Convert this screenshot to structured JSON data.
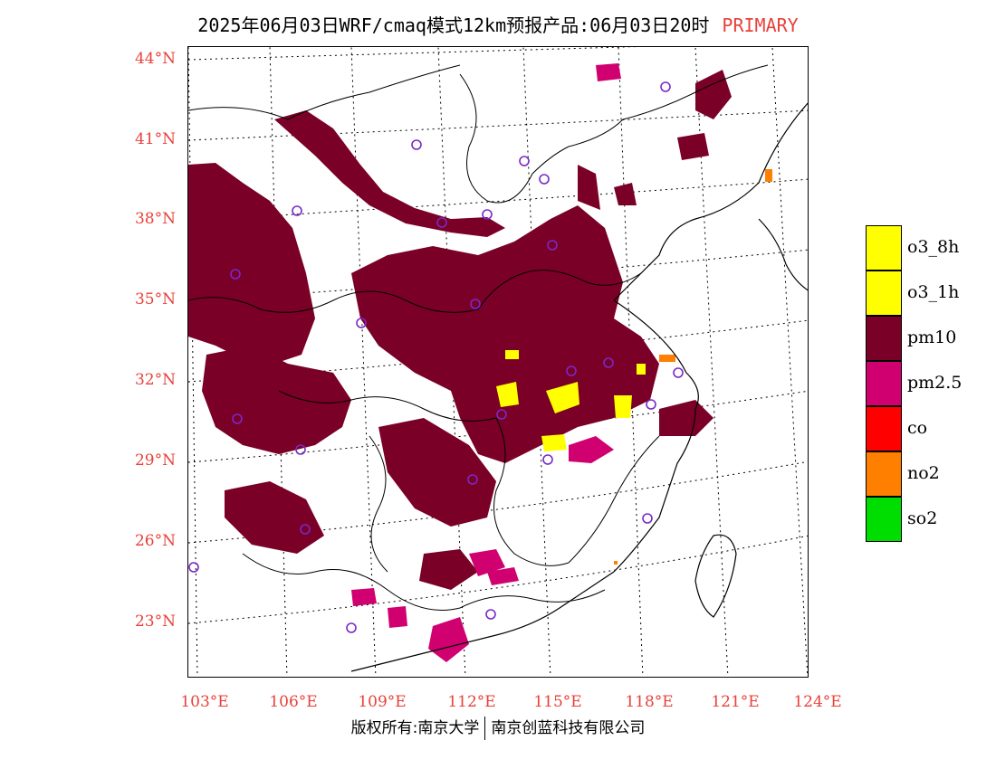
{
  "title": {
    "main": "2025年06月03日WRF/cmaq模式12km预报产品:06月03日20时",
    "tag": "PRIMARY"
  },
  "axes": {
    "y_ticks": [
      "44°N",
      "41°N",
      "38°N",
      "35°N",
      "32°N",
      "29°N",
      "26°N",
      "23°N"
    ],
    "x_ticks": [
      "103°E",
      "106°E",
      "109°E",
      "112°E",
      "115°E",
      "118°E",
      "121°E",
      "124°E"
    ]
  },
  "legend": [
    {
      "label": "o3_8h",
      "color": "#ffff00"
    },
    {
      "label": "o3_1h",
      "color": "#ffff00"
    },
    {
      "label": "pm10",
      "color": "#7a0028"
    },
    {
      "label": "pm2.5",
      "color": "#d10070"
    },
    {
      "label": "co",
      "color": "#ff0000"
    },
    {
      "label": "no2",
      "color": "#ff7f00"
    },
    {
      "label": "so2",
      "color": "#00dd00"
    }
  ],
  "copyright": {
    "left": "版权所有:南京大学",
    "right": "南京创蓝科技有限公司"
  },
  "station_marker_color": "#7a28c8"
}
